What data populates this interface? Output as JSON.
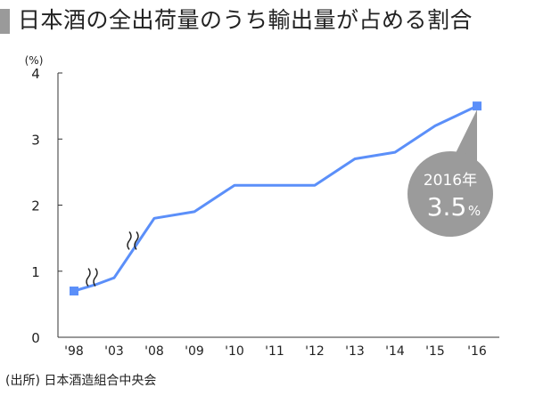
{
  "title": "日本酒の全出荷量のうち輸出量が占める割合",
  "source": "(出所) 日本酒造組合中央会",
  "colors": {
    "line": "#5b8ff9",
    "marker": "#5b8ff9",
    "bubble": "#9b9b9b",
    "axis": "#333333",
    "title_bar": "#9a9a9a"
  },
  "chart_data": {
    "type": "line",
    "y_unit_label": "(%)",
    "ylim": [
      0,
      4
    ],
    "yticks": [
      "0",
      "1",
      "2",
      "3",
      "4"
    ],
    "categories": [
      "'98",
      "'03",
      "'08",
      "'09",
      "'10",
      "'11",
      "'12",
      "'13",
      "'14",
      "'15",
      "'16"
    ],
    "series": [
      {
        "points": [
          {
            "x": "'98",
            "y": 0.7
          },
          {
            "x": "'01",
            "y": 0.8
          },
          {
            "x": "'03",
            "y": 0.9
          },
          {
            "x": "'07",
            "y": 1.3
          },
          {
            "x": "'08",
            "y": 1.8
          },
          {
            "x": "'09",
            "y": 1.9
          },
          {
            "x": "'10",
            "y": 2.3
          },
          {
            "x": "'11",
            "y": 2.3
          },
          {
            "x": "'12",
            "y": 2.3
          },
          {
            "x": "'13",
            "y": 2.7
          },
          {
            "x": "'14",
            "y": 2.8
          },
          {
            "x": "'15",
            "y": 3.2
          },
          {
            "x": "'16",
            "y": 3.5
          }
        ]
      }
    ],
    "markers": [
      "'98",
      "'16"
    ],
    "axis_breaks": [
      "'98–'03",
      "'03–'08"
    ],
    "callout": {
      "year": "2016年",
      "value": "3.5",
      "unit": "%"
    }
  }
}
